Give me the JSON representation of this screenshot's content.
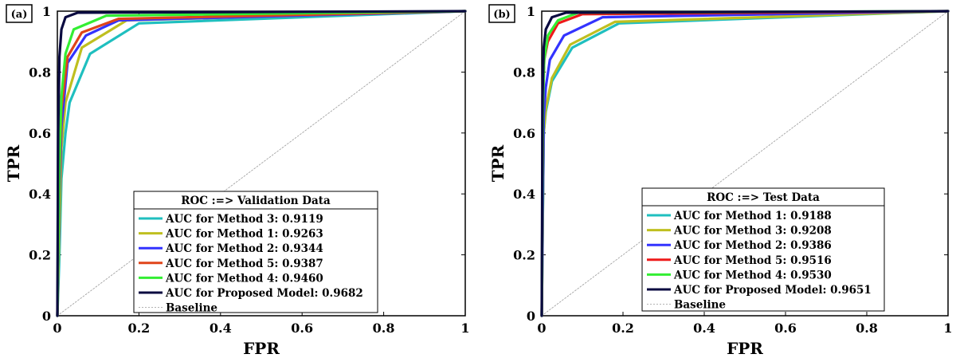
{
  "chart_data": [
    {
      "type": "line",
      "panel_label": "(a)",
      "xlabel": "FPR",
      "ylabel": "TPR",
      "xlim": [
        0,
        1
      ],
      "ylim": [
        0,
        1
      ],
      "x_ticks": [
        "0",
        "0.2",
        "0.4",
        "0.6",
        "0.8",
        "1"
      ],
      "y_ticks": [
        "0",
        "0.2",
        "0.4",
        "0.6",
        "0.8",
        "1"
      ],
      "grid": false,
      "legend": {
        "title": "ROC :=> Validation Data",
        "placement": "bottom-right"
      },
      "series": [
        {
          "name": "AUC for Method 3: 0.9119",
          "color": "#1fbfbf",
          "x": [
            0,
            0.005,
            0.01,
            0.02,
            0.03,
            0.08,
            0.2,
            1
          ],
          "y": [
            0,
            0.2,
            0.45,
            0.6,
            0.7,
            0.86,
            0.96,
            1
          ]
        },
        {
          "name": "AUC for Method 1: 0.9263",
          "color": "#bfbf1f",
          "x": [
            0,
            0.005,
            0.01,
            0.02,
            0.06,
            0.17,
            1
          ],
          "y": [
            0,
            0.3,
            0.55,
            0.7,
            0.88,
            0.97,
            1
          ]
        },
        {
          "name": "AUC for Method 2: 0.9344",
          "color": "#3333ff",
          "x": [
            0,
            0.005,
            0.01,
            0.025,
            0.07,
            0.15,
            1
          ],
          "y": [
            0,
            0.4,
            0.62,
            0.83,
            0.92,
            0.97,
            1
          ]
        },
        {
          "name": "AUC for Method 5: 0.9387",
          "color": "#e0451a",
          "x": [
            0,
            0.005,
            0.01,
            0.025,
            0.06,
            0.15,
            1
          ],
          "y": [
            0,
            0.45,
            0.68,
            0.85,
            0.93,
            0.975,
            1
          ]
        },
        {
          "name": "AUC for Method 4: 0.9460",
          "color": "#33ee33",
          "x": [
            0,
            0.005,
            0.01,
            0.02,
            0.04,
            0.12,
            1
          ],
          "y": [
            0,
            0.5,
            0.72,
            0.86,
            0.94,
            0.985,
            1
          ]
        },
        {
          "name": "AUC for Proposed Model: 0.9682",
          "color": "#0a0a40",
          "x": [
            0,
            0.002,
            0.005,
            0.01,
            0.02,
            0.05,
            1
          ],
          "y": [
            0,
            0.6,
            0.85,
            0.94,
            0.98,
            0.995,
            1
          ]
        },
        {
          "name": "Baseline",
          "color": "#999999",
          "dashed": true,
          "x": [
            0,
            1
          ],
          "y": [
            0,
            1
          ]
        }
      ]
    },
    {
      "type": "line",
      "panel_label": "(b)",
      "xlabel": "FPR",
      "ylabel": "TPR",
      "xlim": [
        0,
        1
      ],
      "ylim": [
        0,
        1
      ],
      "x_ticks": [
        "0",
        "0.2",
        "0.4",
        "0.6",
        "0.8",
        "1"
      ],
      "y_ticks": [
        "0",
        "0.2",
        "0.4",
        "0.6",
        "0.8",
        "1"
      ],
      "grid": false,
      "legend": {
        "title": "ROC :=> Test Data",
        "placement": "bottom-right"
      },
      "series": [
        {
          "name": "AUC for Method 1: 0.9188",
          "color": "#1fbfbf",
          "x": [
            0,
            0.005,
            0.01,
            0.025,
            0.075,
            0.19,
            1
          ],
          "y": [
            0,
            0.6,
            0.67,
            0.77,
            0.88,
            0.96,
            1
          ]
        },
        {
          "name": "AUC for Method 3: 0.9208",
          "color": "#bfbf1f",
          "x": [
            0,
            0.005,
            0.01,
            0.025,
            0.07,
            0.18,
            1
          ],
          "y": [
            0,
            0.6,
            0.68,
            0.78,
            0.89,
            0.965,
            1
          ]
        },
        {
          "name": "AUC for Method 2: 0.9386",
          "color": "#3333ff",
          "x": [
            0,
            0.005,
            0.01,
            0.02,
            0.055,
            0.15,
            1
          ],
          "y": [
            0,
            0.65,
            0.75,
            0.84,
            0.92,
            0.98,
            1
          ]
        },
        {
          "name": "AUC for Method 5: 0.9516",
          "color": "#ee1a1a",
          "x": [
            0,
            0.003,
            0.006,
            0.015,
            0.04,
            0.1,
            1
          ],
          "y": [
            0,
            0.7,
            0.84,
            0.9,
            0.96,
            0.99,
            1
          ]
        },
        {
          "name": "AUC for Method 4: 0.9530",
          "color": "#33ee33",
          "x": [
            0,
            0.003,
            0.006,
            0.015,
            0.04,
            0.09,
            1
          ],
          "y": [
            0,
            0.7,
            0.84,
            0.92,
            0.97,
            0.995,
            1
          ]
        },
        {
          "name": "AUC for Proposed Model: 0.9651",
          "color": "#0a0a40",
          "x": [
            0,
            0.002,
            0.005,
            0.01,
            0.025,
            0.06,
            1
          ],
          "y": [
            0,
            0.72,
            0.88,
            0.94,
            0.98,
            0.995,
            1
          ]
        },
        {
          "name": "Baseline",
          "color": "#999999",
          "dashed": true,
          "x": [
            0,
            1
          ],
          "y": [
            0,
            1
          ]
        }
      ]
    }
  ]
}
